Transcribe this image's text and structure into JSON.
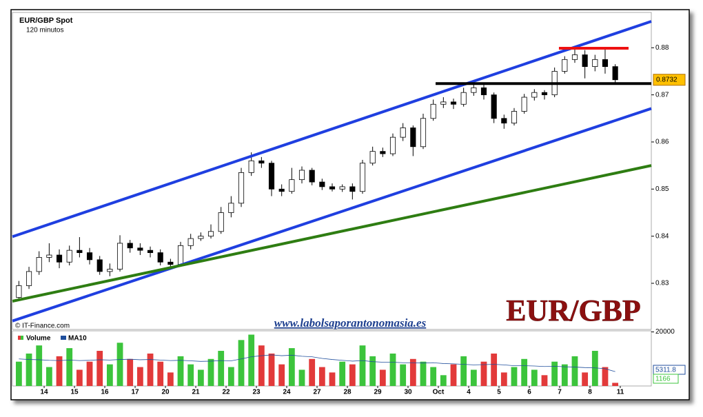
{
  "chart_data": {
    "type": "candlestick",
    "title": "EUR/GBP Spot",
    "subtitle": "120 minutos",
    "source": "© IT-Finance.com",
    "website": "www.labolsaporantonomasia.es",
    "watermark": "EUR/GBP",
    "xlim": [
      -0.14,
      63.07
    ],
    "xticks": [
      {
        "value": 3,
        "label": "14"
      },
      {
        "value": 6,
        "label": "15"
      },
      {
        "value": 9,
        "label": "16"
      },
      {
        "value": 12,
        "label": "17"
      },
      {
        "value": 15,
        "label": "20"
      },
      {
        "value": 18,
        "label": "21"
      },
      {
        "value": 21,
        "label": "22"
      },
      {
        "value": 24,
        "label": "23"
      },
      {
        "value": 27,
        "label": "24"
      },
      {
        "value": 30,
        "label": "27"
      },
      {
        "value": 33,
        "label": "28"
      },
      {
        "value": 36,
        "label": "29"
      },
      {
        "value": 39,
        "label": "30"
      },
      {
        "value": 42,
        "label": "Oct"
      },
      {
        "value": 45,
        "label": "4"
      },
      {
        "value": 48,
        "label": "5"
      },
      {
        "value": 51,
        "label": "6"
      },
      {
        "value": 54,
        "label": "7"
      },
      {
        "value": 57,
        "label": "8"
      },
      {
        "value": 60,
        "label": "11"
      }
    ],
    "ylim": [
      0.8202,
      0.8875
    ],
    "yticks": [
      0.83,
      0.84,
      0.85,
      0.86,
      0.87,
      0.88
    ],
    "grid": false,
    "up_color": "#ffffff",
    "down_color": "#000000",
    "open": [
      0.827,
      0.8295,
      0.8325,
      0.8355,
      0.836,
      0.8345,
      0.837,
      0.8365,
      0.835,
      0.8325,
      0.833,
      0.8385,
      0.8375,
      0.837,
      0.8365,
      0.8345,
      0.834,
      0.838,
      0.8395,
      0.84,
      0.841,
      0.845,
      0.847,
      0.8535,
      0.856,
      0.8555,
      0.85,
      0.8495,
      0.852,
      0.854,
      0.8515,
      0.8505,
      0.85,
      0.8505,
      0.8495,
      0.8555,
      0.858,
      0.8575,
      0.861,
      0.863,
      0.859,
      0.865,
      0.868,
      0.8685,
      0.868,
      0.8705,
      0.8715,
      0.87,
      0.865,
      0.864,
      0.8665,
      0.8695,
      0.8705,
      0.87,
      0.875,
      0.8775,
      0.8785,
      0.876,
      0.8775,
      0.876
    ],
    "high": [
      0.8305,
      0.8335,
      0.8368,
      0.8385,
      0.8372,
      0.838,
      0.8398,
      0.8375,
      0.8358,
      0.8342,
      0.8402,
      0.8392,
      0.8385,
      0.8378,
      0.8372,
      0.8352,
      0.8388,
      0.8405,
      0.8408,
      0.8425,
      0.8462,
      0.8485,
      0.8545,
      0.8578,
      0.8568,
      0.856,
      0.851,
      0.8545,
      0.8548,
      0.8545,
      0.8522,
      0.8512,
      0.851,
      0.8512,
      0.8562,
      0.859,
      0.8588,
      0.8618,
      0.864,
      0.8635,
      0.866,
      0.869,
      0.8695,
      0.8692,
      0.8715,
      0.8725,
      0.8722,
      0.8705,
      0.8658,
      0.8672,
      0.8702,
      0.8712,
      0.871,
      0.8758,
      0.8782,
      0.8802,
      0.8795,
      0.8785,
      0.88,
      0.8765
    ],
    "low": [
      0.8262,
      0.8288,
      0.8318,
      0.8345,
      0.8332,
      0.8338,
      0.8355,
      0.834,
      0.8318,
      0.8315,
      0.8325,
      0.8365,
      0.836,
      0.8355,
      0.8338,
      0.8332,
      0.8335,
      0.8372,
      0.839,
      0.8395,
      0.8405,
      0.844,
      0.8462,
      0.8528,
      0.8545,
      0.8485,
      0.8485,
      0.849,
      0.8512,
      0.8508,
      0.8498,
      0.8495,
      0.8494,
      0.8478,
      0.849,
      0.855,
      0.8568,
      0.857,
      0.8602,
      0.857,
      0.8585,
      0.8645,
      0.8672,
      0.867,
      0.8675,
      0.8698,
      0.869,
      0.864,
      0.8628,
      0.8635,
      0.866,
      0.8688,
      0.869,
      0.8695,
      0.8745,
      0.8768,
      0.8735,
      0.875,
      0.8745,
      0.8722
    ],
    "close": [
      0.8295,
      0.8325,
      0.8355,
      0.836,
      0.8345,
      0.837,
      0.8365,
      0.835,
      0.8325,
      0.833,
      0.8385,
      0.8375,
      0.837,
      0.8365,
      0.8345,
      0.834,
      0.838,
      0.8395,
      0.84,
      0.841,
      0.845,
      0.847,
      0.8535,
      0.856,
      0.8555,
      0.85,
      0.8495,
      0.852,
      0.854,
      0.8515,
      0.8505,
      0.85,
      0.8505,
      0.8495,
      0.8555,
      0.858,
      0.8575,
      0.861,
      0.863,
      0.859,
      0.865,
      0.868,
      0.8685,
      0.868,
      0.8705,
      0.8715,
      0.87,
      0.865,
      0.864,
      0.8665,
      0.8695,
      0.8705,
      0.87,
      0.875,
      0.8775,
      0.8785,
      0.876,
      0.8775,
      0.876,
      0.8732
    ],
    "trendlines": [
      {
        "color": "#1f3fe0",
        "x": [
          -0.14,
          63.07
        ],
        "y": [
          0.8399,
          0.8856
        ]
      },
      {
        "color": "#1f3fe0",
        "x": [
          -0.14,
          63.07
        ],
        "y": [
          0.822,
          0.8671
        ]
      },
      {
        "color": "#2e7d12",
        "x": [
          -0.14,
          63.07
        ],
        "y": [
          0.8262,
          0.855
        ]
      },
      {
        "color": "#000000",
        "x": [
          41.73,
          63.07
        ],
        "y": [
          0.8724,
          0.8724
        ]
      },
      {
        "color": "#ee1111",
        "x": [
          53.93,
          60.82
        ],
        "y": [
          0.8799,
          0.8799
        ]
      }
    ],
    "volume_ylim": [
      0,
      20400
    ],
    "volume_yticks": [
      20000
    ],
    "volume": {
      "name": "Volume",
      "up_color": "#3cc43c",
      "down_color": "#e23a3a",
      "values": [
        9000,
        12000,
        15000,
        7000,
        11000,
        14000,
        6000,
        9000,
        13000,
        8000,
        16000,
        10000,
        7000,
        12000,
        9000,
        5000,
        11000,
        8000,
        6000,
        10000,
        13000,
        7000,
        17000,
        19000,
        15000,
        12000,
        8000,
        14000,
        6000,
        10000,
        7000,
        5000,
        9000,
        8000,
        15000,
        11000,
        6000,
        12000,
        8000,
        10000,
        9000,
        7000,
        4000,
        8000,
        11000,
        6000,
        9000,
        12000,
        5000,
        7000,
        10000,
        6000,
        4000,
        9000,
        8000,
        11000,
        5000,
        13000,
        7000,
        1166
      ]
    },
    "ma10": {
      "name": "MA10",
      "color": "#1f4e9c",
      "values": [
        10000,
        9800,
        9700,
        9500,
        9400,
        9600,
        9400,
        9500,
        9700,
        9600,
        9800,
        9900,
        9700,
        9800,
        9600,
        9400,
        9500,
        9300,
        9100,
        9200,
        9400,
        9300,
        10000,
        10800,
        11200,
        11500,
        11200,
        11400,
        11000,
        10800,
        10200,
        9800,
        9500,
        9200,
        9400,
        9000,
        8800,
        8800,
        8600,
        8600,
        8500,
        8600,
        8300,
        8200,
        8000,
        7800,
        7900,
        8000,
        7800,
        7500,
        7500,
        7400,
        7200,
        7300,
        7100,
        7000,
        6800,
        6700,
        6400,
        5311.8
      ]
    }
  }
}
